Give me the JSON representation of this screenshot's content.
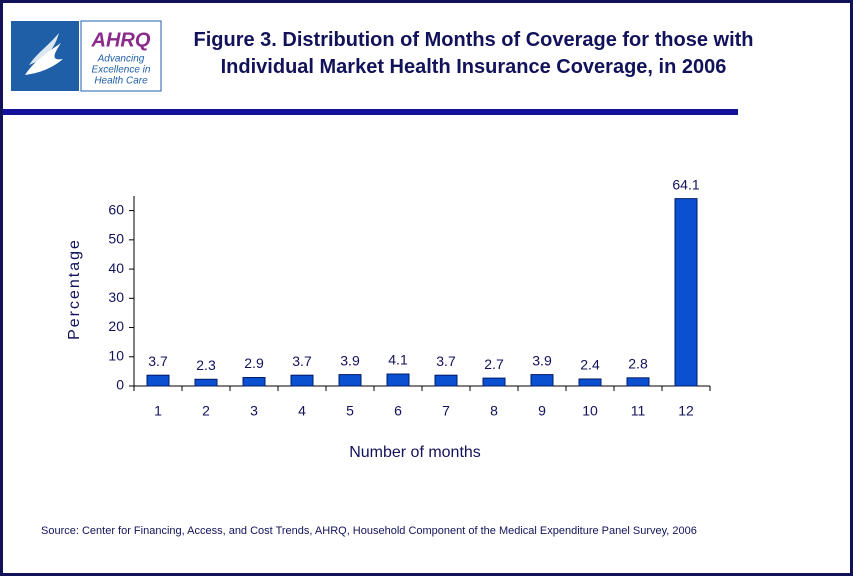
{
  "logo": {
    "name": "AHRQ",
    "tagline": [
      "Advancing",
      "Excellence in",
      "Health Care"
    ]
  },
  "chart_data": {
    "type": "bar",
    "title": "Figure 3. Distribution of Months of Coverage for those with Individual Market Health Insurance Coverage, in 2006",
    "x_label": "Number of months",
    "y_label": "Percentage",
    "categories": [
      "1",
      "2",
      "3",
      "4",
      "5",
      "6",
      "7",
      "8",
      "9",
      "10",
      "11",
      "12"
    ],
    "values": [
      3.7,
      2.3,
      2.9,
      3.7,
      3.9,
      4.1,
      3.7,
      2.7,
      3.9,
      2.4,
      2.8,
      64.1
    ],
    "color": "#0b50d0",
    "ylim": [
      0,
      65
    ],
    "yticks": [
      0,
      10,
      20,
      30,
      40,
      50,
      60
    ],
    "grid": false,
    "source": "Source: Center for Financing, Access, and Cost Trends, AHRQ, Household Component of the Medical Expenditure Panel Survey, 2006"
  }
}
